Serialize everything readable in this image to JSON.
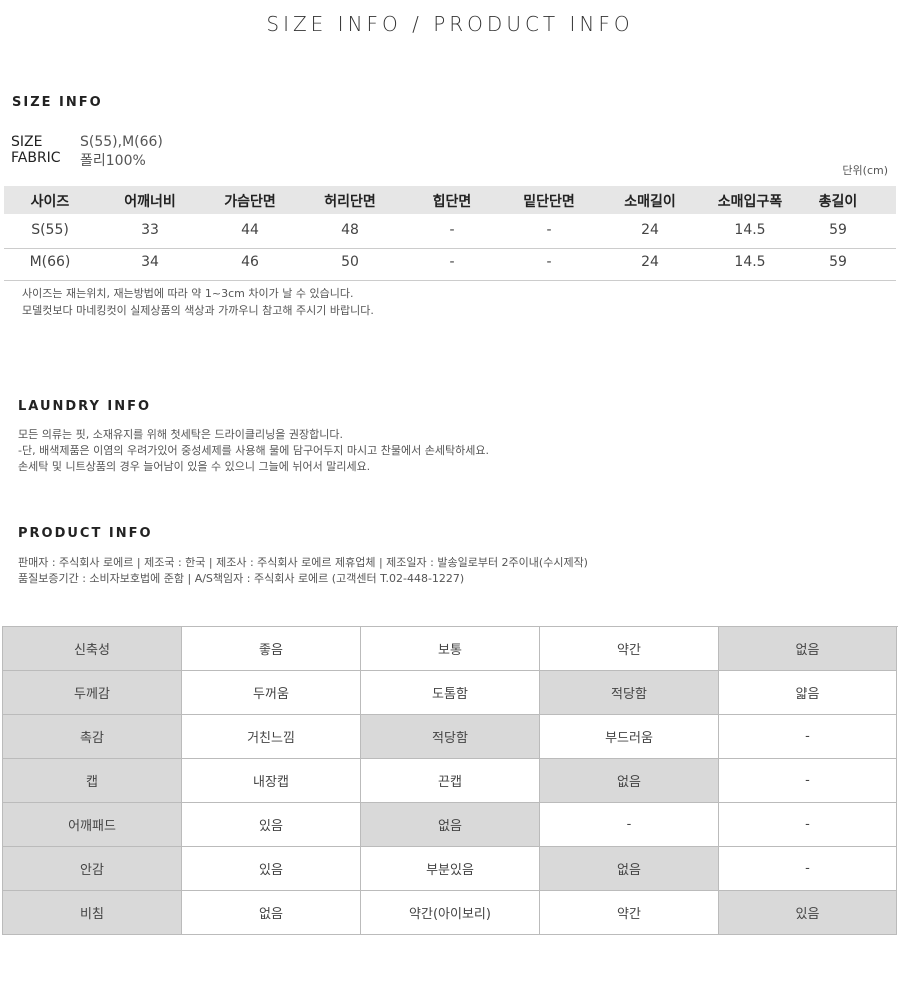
{
  "title": "SIZE INFO / PRODUCT INFO",
  "size_info": {
    "heading": "SIZE INFO",
    "size_label": "SIZE",
    "size_value": "S(55),M(66)",
    "fabric_label": "FABRIC",
    "fabric_value": "폴리100%",
    "unit": "단위(cm)"
  },
  "size_table": {
    "header": [
      "사이즈",
      "어깨너비",
      "가슴단면",
      "허리단면",
      "힙단면",
      "밑단단면",
      "소매길이",
      "소매입구폭",
      "총길이"
    ],
    "rows": [
      [
        "S(55)",
        "33",
        "44",
        "48",
        "-",
        "-",
        "24",
        "14.5",
        "59"
      ],
      [
        "M(66)",
        "34",
        "46",
        "50",
        "-",
        "-",
        "24",
        "14.5",
        "59"
      ]
    ]
  },
  "size_notes": [
    "사이즈는 재는위치, 재는방법에 따라 약 1~3cm 차이가 날 수 있습니다.",
    "모델컷보다 마네킹컷이 실제상품의 색상과 가까우니 참고해 주시기 바랍니다."
  ],
  "laundry": {
    "heading": "LAUNDRY INFO",
    "lines": [
      "모든 의류는 핏, 소재유지를 위해 첫세탁은 드라이클리닝을 권장합니다.",
      "-단, 배색제품은 이염의 우려가있어 중성세제를 사용해 물에 담구어두지 마시고 찬물에서 손세탁하세요.",
      "손세탁 및 니트상품의 경우 늘어남이 있을 수 있으니 그늘에 뉘어서 말리세요."
    ]
  },
  "product": {
    "heading": "PRODUCT INFO",
    "lines": [
      "판매자 : 주식회사 로에르 | 제조국 : 한국 | 제조사 : 주식회사 로에르 제휴업체 | 제조일자 : 발송일로부터 2주이내(수시제작)",
      "품질보증기간 : 소비자보호법에 준함 | A/S책임자 : 주식회사 로에르 (고객센터 T.02-448-1227)"
    ]
  },
  "feature_table": {
    "rows": [
      {
        "cells": [
          "신축성",
          "좋음",
          "보통",
          "약간",
          "없음"
        ],
        "selected": 4
      },
      {
        "cells": [
          "두께감",
          "두꺼움",
          "도톰함",
          "적당함",
          "얇음"
        ],
        "selected": 3
      },
      {
        "cells": [
          "촉감",
          "거친느낌",
          "적당함",
          "부드러움",
          "-"
        ],
        "selected": 2
      },
      {
        "cells": [
          "캡",
          "내장캡",
          "끈캡",
          "없음",
          "-"
        ],
        "selected": 3
      },
      {
        "cells": [
          "어깨패드",
          "있음",
          "없음",
          "-",
          "-"
        ],
        "selected": 2
      },
      {
        "cells": [
          "안감",
          "있음",
          "부분있음",
          "없음",
          "-"
        ],
        "selected": 3
      },
      {
        "cells": [
          "비침",
          "없음",
          "약간(아이보리)",
          "약간",
          "있음"
        ],
        "selected": 4
      }
    ]
  }
}
